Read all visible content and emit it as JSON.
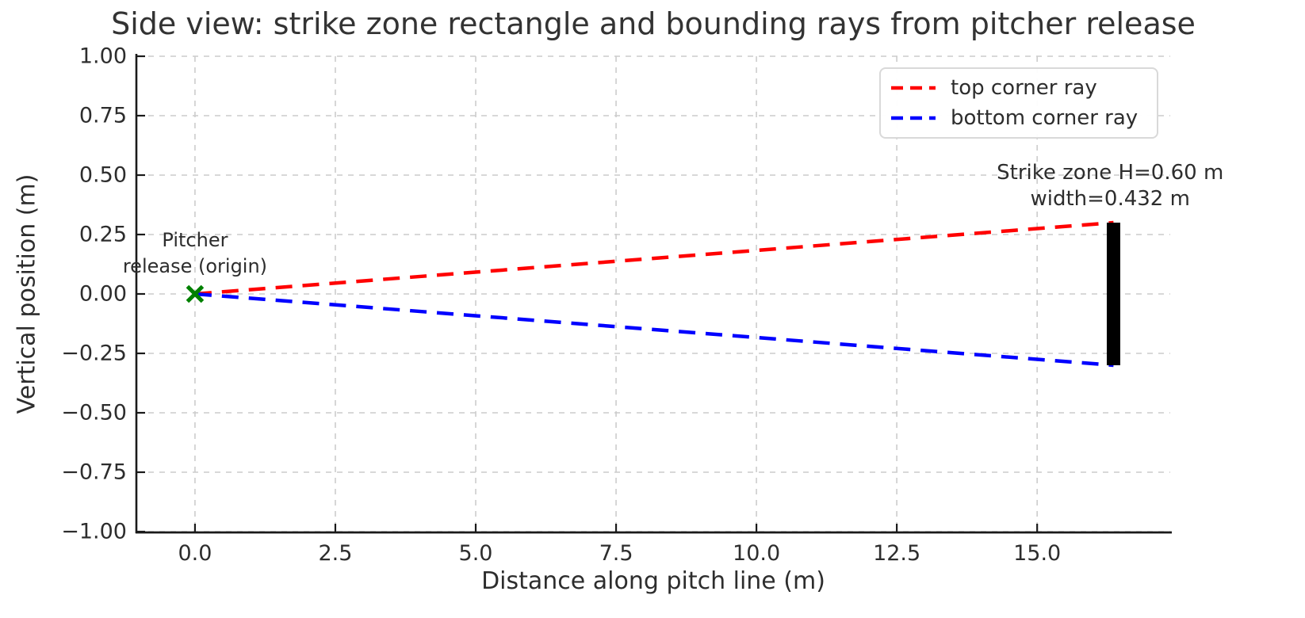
{
  "chart_data": {
    "type": "line",
    "title": "Side view: strike zone rectangle and bounding rays from pitcher release",
    "xlabel": "Distance along pitch line (m)",
    "ylabel": "Vertical position (m)",
    "xlim": [
      -1.03,
      17.37
    ],
    "ylim": [
      -1.0,
      1.0
    ],
    "grid": true,
    "legend_position": "upper right",
    "xticks": {
      "values": [
        0.0,
        2.5,
        5.0,
        7.5,
        10.0,
        12.5,
        15.0
      ],
      "labels": [
        "0.0",
        "2.5",
        "5.0",
        "7.5",
        "10.0",
        "12.5",
        "15.0"
      ]
    },
    "yticks": {
      "values": [
        1.0,
        0.75,
        0.5,
        0.25,
        0.0,
        -0.25,
        -0.5,
        -0.75,
        -1.0
      ],
      "labels": [
        "1.00",
        "0.75",
        "0.50",
        "0.25",
        "0.00",
        "−0.25",
        "−0.50",
        "−0.75",
        "−1.00"
      ]
    },
    "series": [
      {
        "name": "top corner ray",
        "color": "#ff0000",
        "linestyle": "dashed",
        "points": [
          [
            0.0,
            0.0
          ],
          [
            16.36,
            0.3
          ]
        ]
      },
      {
        "name": "bottom corner ray",
        "color": "#0000ff",
        "linestyle": "dashed",
        "points": [
          [
            0.0,
            0.0
          ],
          [
            16.36,
            -0.3
          ]
        ]
      }
    ],
    "shapes": [
      {
        "kind": "rect",
        "name": "strike-zone-rect",
        "x0": 16.24,
        "x1": 16.48,
        "y0": -0.3,
        "y1": 0.3,
        "fill": "#000000"
      }
    ],
    "markers": [
      {
        "shape": "x",
        "x": 0.0,
        "y": 0.0,
        "color": "#008000",
        "size": 19,
        "stroke_width": 5
      }
    ],
    "annotations": [
      {
        "name": "pitcher-release-label",
        "x": 0.0,
        "y": 0.06,
        "lines": [
          "Pitcher",
          "release (origin)"
        ]
      },
      {
        "name": "strike-zone-label",
        "x": 16.3,
        "y": 0.345,
        "lines": [
          "Strike zone H=0.60 m",
          "width=0.432 m"
        ]
      }
    ]
  },
  "style": {
    "colors": {
      "text": "#2d2d2d",
      "title": "#333333",
      "spine": "#1a1a1a",
      "grid": "#cccccc",
      "legend_border": "#d9d9d9",
      "background": "#ffffff",
      "top_ray": "#ff0000",
      "bottom_ray": "#0000ff",
      "marker": "#008000",
      "strike_zone_fill": "#000000"
    }
  }
}
